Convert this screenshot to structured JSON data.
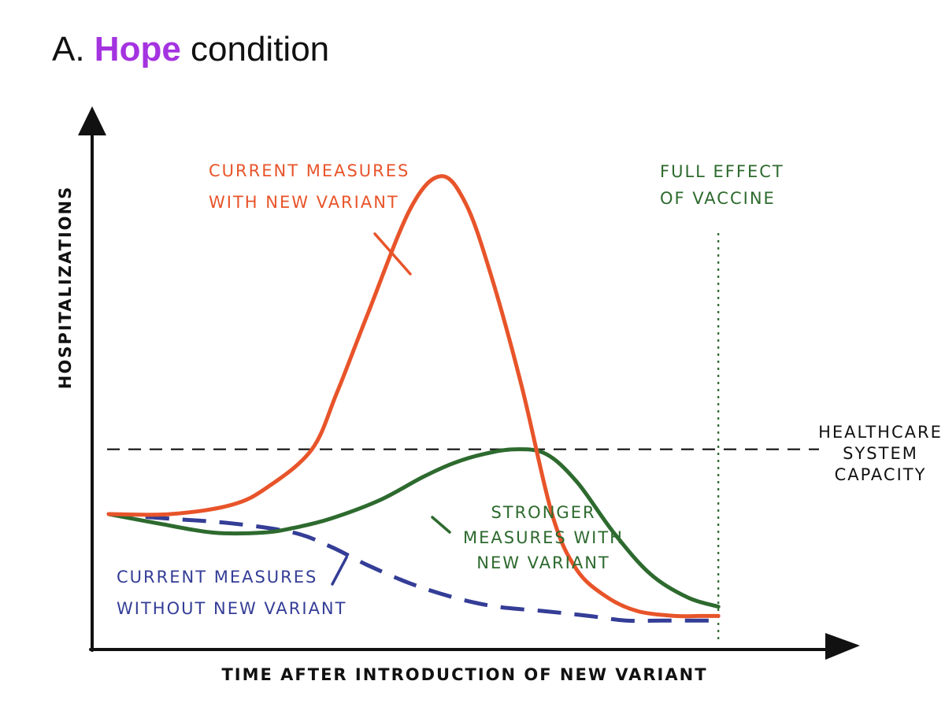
{
  "title": {
    "prefix": "A. ",
    "highlight": "Hope",
    "suffix": " condition"
  },
  "colors": {
    "current_with_variant": "#e8542a",
    "stronger_with_variant": "#2d6a2e",
    "current_without_variant": "#343d96",
    "vaccine_line": "#2d6a2e",
    "capacity_line": "#111111",
    "axes": "#111111",
    "highlight": "#a433e0"
  },
  "chart_data": {
    "type": "line",
    "title": "",
    "xlabel": "TIME AFTER INTRODUCTION OF NEW VARIANT",
    "ylabel": "HOSPITALIZATIONS",
    "x_ticks": "none",
    "y_ticks": "none",
    "xlim": [
      0,
      100
    ],
    "ylim": [
      0,
      100
    ],
    "grid": false,
    "series": [
      {
        "key": "current_with_variant",
        "label_lines": [
          "CURRENT MEASURES",
          "WITH NEW VARIANT"
        ],
        "style": "solid",
        "x": [
          0,
          10,
          20,
          26,
          33,
          37,
          42,
          49,
          54,
          58,
          62,
          67,
          72,
          76,
          81,
          86,
          92,
          96,
          99
        ],
        "y": [
          25,
          25,
          27,
          31,
          39,
          51,
          68,
          91,
          98,
          92,
          77,
          53,
          25,
          13,
          7,
          4,
          3,
          3,
          3
        ]
      },
      {
        "key": "stronger_with_variant",
        "label_lines": [
          "STRONGER",
          "MEASURES WITH",
          "NEW VARIANT"
        ],
        "style": "solid",
        "x": [
          0,
          8,
          17,
          25,
          30,
          36,
          44,
          51,
          56,
          61,
          66,
          71,
          76,
          82,
          88,
          94,
          99
        ],
        "y": [
          25,
          23,
          21,
          21,
          22,
          24,
          28,
          33,
          36,
          38,
          39,
          38,
          32,
          21,
          12,
          7,
          5
        ]
      },
      {
        "key": "current_without_variant",
        "label_lines": [
          "CURRENT MEASURES",
          "WITHOUT NEW VARIANT"
        ],
        "style": "dashed",
        "x": [
          0,
          10,
          20,
          30,
          36,
          42,
          49,
          56,
          63,
          71,
          78,
          84,
          90,
          99
        ],
        "y": [
          25,
          24,
          23,
          21,
          18,
          14,
          10,
          7,
          5,
          4,
          3,
          2,
          2,
          2
        ]
      }
    ],
    "reference_lines": [
      {
        "key": "capacity",
        "orientation": "horizontal",
        "value": 39,
        "style": "dashed",
        "label_lines": [
          "HEALTHCARE",
          "SYSTEM",
          "CAPACITY"
        ]
      },
      {
        "key": "vaccine",
        "orientation": "vertical",
        "value": 99,
        "style": "dotted",
        "label_lines": [
          "FULL EFFECT",
          "OF VACCINE"
        ]
      }
    ]
  }
}
